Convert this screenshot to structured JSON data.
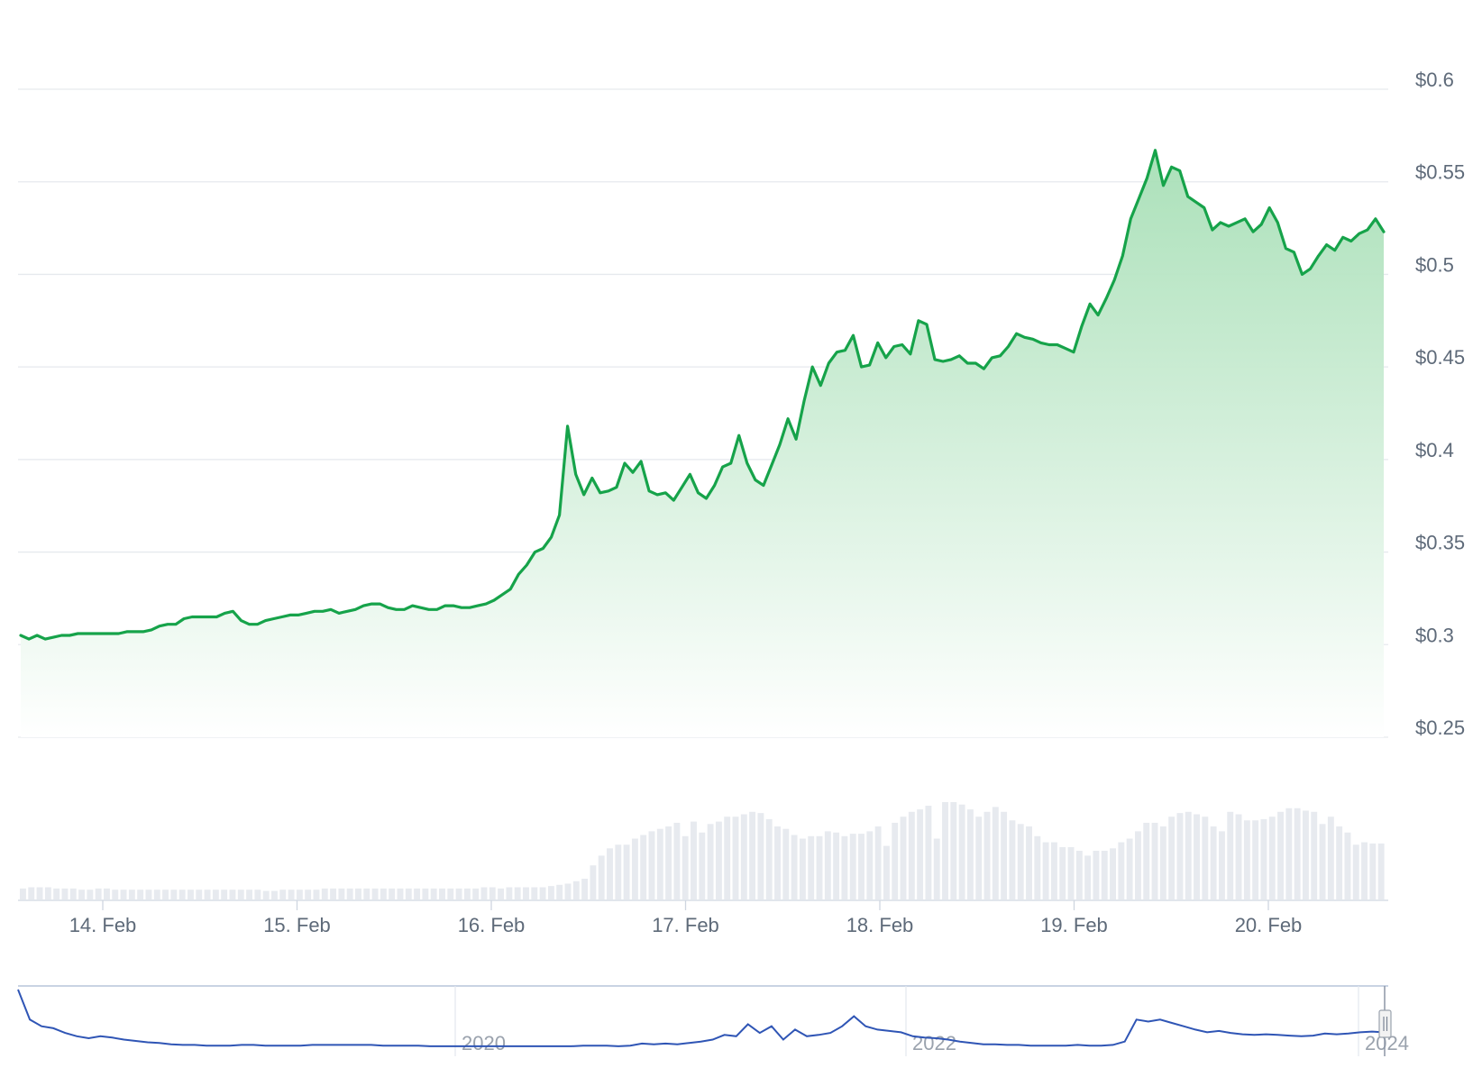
{
  "chart_data": {
    "type": "area",
    "price": {
      "x_start": "2024-02-13T12:00",
      "x_step_hours": 0.75,
      "y_ticks": [
        "$0.25",
        "$0.3",
        "$0.35",
        "$0.4",
        "$0.45",
        "$0.5",
        "$0.55",
        "$0.6"
      ],
      "y_tick_values": [
        0.25,
        0.3,
        0.35,
        0.4,
        0.45,
        0.5,
        0.55,
        0.6
      ],
      "ylim": [
        0.25,
        0.6
      ],
      "values": [
        0.305,
        0.303,
        0.305,
        0.303,
        0.304,
        0.305,
        0.305,
        0.306,
        0.306,
        0.306,
        0.306,
        0.306,
        0.306,
        0.307,
        0.307,
        0.307,
        0.308,
        0.31,
        0.311,
        0.311,
        0.314,
        0.315,
        0.315,
        0.315,
        0.315,
        0.317,
        0.318,
        0.313,
        0.311,
        0.311,
        0.313,
        0.314,
        0.315,
        0.316,
        0.316,
        0.317,
        0.318,
        0.318,
        0.319,
        0.317,
        0.318,
        0.319,
        0.321,
        0.322,
        0.322,
        0.32,
        0.319,
        0.319,
        0.321,
        0.32,
        0.319,
        0.319,
        0.321,
        0.321,
        0.32,
        0.32,
        0.321,
        0.322,
        0.324,
        0.327,
        0.33,
        0.338,
        0.343,
        0.35,
        0.352,
        0.358,
        0.37,
        0.418,
        0.392,
        0.381,
        0.39,
        0.382,
        0.383,
        0.385,
        0.398,
        0.393,
        0.399,
        0.383,
        0.381,
        0.382,
        0.378,
        0.385,
        0.392,
        0.382,
        0.379,
        0.386,
        0.396,
        0.398,
        0.413,
        0.398,
        0.389,
        0.386,
        0.397,
        0.408,
        0.422,
        0.411,
        0.432,
        0.45,
        0.44,
        0.452,
        0.458,
        0.459,
        0.467,
        0.45,
        0.451,
        0.463,
        0.455,
        0.461,
        0.462,
        0.457,
        0.475,
        0.473,
        0.454,
        0.453,
        0.454,
        0.456,
        0.452,
        0.452,
        0.449,
        0.455,
        0.456,
        0.461,
        0.468,
        0.466,
        0.465,
        0.463,
        0.462,
        0.462,
        0.46,
        0.458,
        0.472,
        0.484,
        0.478,
        0.487,
        0.497,
        0.51,
        0.53,
        0.541,
        0.552,
        0.567,
        0.548,
        0.558,
        0.556,
        0.542,
        0.539,
        0.536,
        0.524,
        0.528,
        0.526,
        0.528,
        0.53,
        0.523,
        0.527,
        0.536,
        0.528,
        0.514,
        0.512,
        0.5,
        0.503,
        0.51,
        0.516,
        0.513,
        0.52,
        0.518,
        0.522,
        0.524,
        0.53,
        0.523
      ]
    },
    "volume": {
      "values": [
        0.09,
        0.1,
        0.1,
        0.1,
        0.09,
        0.09,
        0.09,
        0.08,
        0.08,
        0.09,
        0.09,
        0.08,
        0.08,
        0.08,
        0.08,
        0.08,
        0.08,
        0.08,
        0.08,
        0.08,
        0.08,
        0.08,
        0.08,
        0.08,
        0.08,
        0.08,
        0.08,
        0.08,
        0.08,
        0.07,
        0.07,
        0.08,
        0.08,
        0.08,
        0.08,
        0.08,
        0.09,
        0.09,
        0.09,
        0.09,
        0.09,
        0.09,
        0.09,
        0.09,
        0.09,
        0.09,
        0.09,
        0.09,
        0.09,
        0.09,
        0.09,
        0.09,
        0.09,
        0.09,
        0.09,
        0.1,
        0.1,
        0.09,
        0.1,
        0.1,
        0.1,
        0.1,
        0.1,
        0.11,
        0.12,
        0.13,
        0.15,
        0.17,
        0.28,
        0.36,
        0.42,
        0.45,
        0.45,
        0.5,
        0.53,
        0.56,
        0.58,
        0.6,
        0.63,
        0.52,
        0.64,
        0.55,
        0.62,
        0.64,
        0.68,
        0.68,
        0.7,
        0.72,
        0.71,
        0.66,
        0.6,
        0.58,
        0.53,
        0.5,
        0.52,
        0.52,
        0.56,
        0.55,
        0.52,
        0.54,
        0.54,
        0.56,
        0.6,
        0.44,
        0.63,
        0.68,
        0.72,
        0.74,
        0.77,
        0.5,
        0.8,
        0.8,
        0.78,
        0.74,
        0.68,
        0.72,
        0.76,
        0.72,
        0.65,
        0.62,
        0.6,
        0.52,
        0.47,
        0.47,
        0.43,
        0.43,
        0.4,
        0.36,
        0.4,
        0.4,
        0.42,
        0.47,
        0.5,
        0.56,
        0.63,
        0.63,
        0.6,
        0.68,
        0.71,
        0.72,
        0.7,
        0.68,
        0.6,
        0.56,
        0.72,
        0.7,
        0.65,
        0.65,
        0.66,
        0.68,
        0.72,
        0.75,
        0.75,
        0.73,
        0.72,
        0.62,
        0.68,
        0.6,
        0.55,
        0.45,
        0.47,
        0.46,
        0.46
      ]
    },
    "x_ticks": [
      "14. Feb",
      "15. Feb",
      "16. Feb",
      "17. Feb",
      "18. Feb",
      "19. Feb",
      "20. Feb"
    ],
    "x_tick_dates": [
      "2024-02-14",
      "2024-02-15",
      "2024-02-16",
      "2024-02-17",
      "2024-02-18",
      "2024-02-19",
      "2024-02-20"
    ],
    "navigator": {
      "x_ticks": [
        "2020",
        "2022",
        "2024"
      ],
      "x_tick_dates": [
        "2020-01-01",
        "2022-01-01",
        "2024-01-01"
      ],
      "x_start": "2018-01-01",
      "x_end": "2024-02-20",
      "values": [
        1.0,
        0.55,
        0.45,
        0.42,
        0.35,
        0.3,
        0.27,
        0.3,
        0.28,
        0.25,
        0.23,
        0.21,
        0.2,
        0.18,
        0.17,
        0.17,
        0.16,
        0.16,
        0.16,
        0.17,
        0.17,
        0.16,
        0.16,
        0.16,
        0.16,
        0.17,
        0.17,
        0.17,
        0.17,
        0.17,
        0.17,
        0.16,
        0.16,
        0.16,
        0.16,
        0.15,
        0.15,
        0.15,
        0.15,
        0.15,
        0.15,
        0.15,
        0.15,
        0.15,
        0.15,
        0.15,
        0.15,
        0.15,
        0.16,
        0.16,
        0.16,
        0.15,
        0.16,
        0.19,
        0.18,
        0.19,
        0.18,
        0.2,
        0.22,
        0.25,
        0.32,
        0.3,
        0.48,
        0.35,
        0.45,
        0.25,
        0.4,
        0.3,
        0.32,
        0.35,
        0.45,
        0.6,
        0.45,
        0.4,
        0.38,
        0.36,
        0.3,
        0.28,
        0.27,
        0.25,
        0.22,
        0.2,
        0.18,
        0.18,
        0.17,
        0.17,
        0.16,
        0.16,
        0.16,
        0.16,
        0.17,
        0.16,
        0.16,
        0.17,
        0.22,
        0.55,
        0.52,
        0.55,
        0.5,
        0.45,
        0.4,
        0.36,
        0.38,
        0.35,
        0.33,
        0.32,
        0.33,
        0.32,
        0.31,
        0.3,
        0.31,
        0.34,
        0.33,
        0.34,
        0.36,
        0.37,
        0.36
      ]
    },
    "colors": {
      "line": "#16a34a",
      "area_top": "#a7dfb6",
      "area_bottom": "#ffffff",
      "volume_bar": "#e7eaef",
      "grid": "#e6e9ee",
      "axis_text": "#5e6a79",
      "navigator_line": "#2f55b5",
      "navigator_frame": "#c9d3e3"
    }
  }
}
